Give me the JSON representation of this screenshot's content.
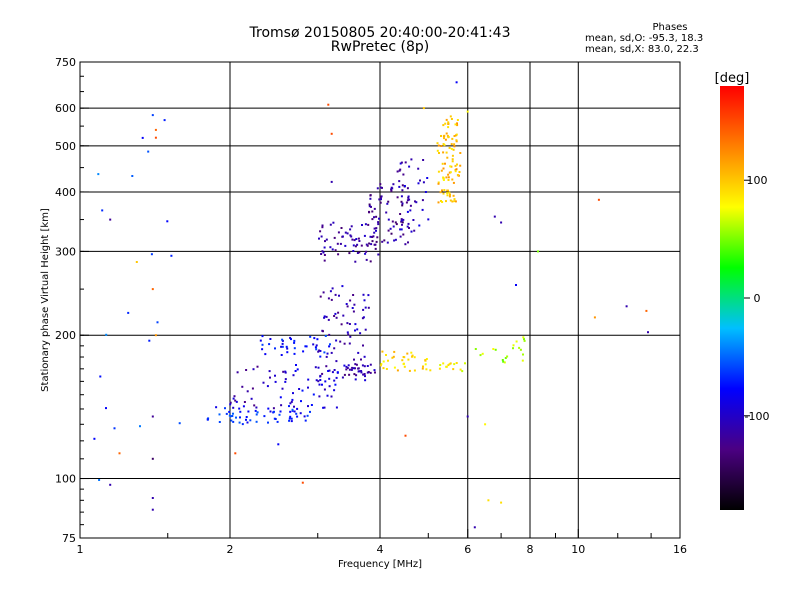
{
  "header": {
    "title_line1": "Tromsø 20150805 20:40:00-20:41:43",
    "title_line2": "RwPretec (8p)",
    "stats_title": "Phases",
    "stats_line1": "mean, sd,O: -95.3, 18.3",
    "stats_line2": "mean, sd,X:  83.0, 22.3"
  },
  "colorbar": {
    "unit_label": "[deg]",
    "tick_labels": [
      {
        "value": 100,
        "label": "100"
      },
      {
        "value": 0,
        "label": "0"
      },
      {
        "value": -100,
        "label": "-100"
      }
    ],
    "range": [
      -180,
      180
    ],
    "colors": [
      "#000000",
      "#4b0082",
      "#0000ff",
      "#00bfff",
      "#00ff00",
      "#ffff00",
      "#ff8000",
      "#ff0000"
    ]
  },
  "chart_data": {
    "type": "scatter",
    "title": "Tromsø 20150805 20:40:00-20:41:43",
    "subtitle": "RwPretec (8p)",
    "xlabel": "Frequency [MHz]",
    "ylabel": "Stationary phase Virtual Height [km]",
    "x_scale": "log",
    "y_scale": "log",
    "xlim": [
      1,
      16
    ],
    "ylim": [
      75,
      750
    ],
    "x_ticks": [
      {
        "value": 1,
        "label": "1"
      },
      {
        "value": 2,
        "label": "2"
      },
      {
        "value": 4,
        "label": "4"
      },
      {
        "value": 6,
        "label": "6"
      },
      {
        "value": 8,
        "label": "8"
      },
      {
        "value": 10,
        "label": "10"
      },
      {
        "value": 16,
        "label": "16"
      }
    ],
    "y_ticks": [
      {
        "value": 75,
        "label": "75"
      },
      {
        "value": 100,
        "label": "100"
      },
      {
        "value": 200,
        "label": "200"
      },
      {
        "value": 300,
        "label": "300"
      },
      {
        "value": 400,
        "label": "400"
      },
      {
        "value": 500,
        "label": "500"
      },
      {
        "value": 600,
        "label": "600"
      },
      {
        "value": 750,
        "label": "750"
      }
    ],
    "grid_x": [
      2,
      4,
      6,
      8,
      10
    ],
    "grid_y": [
      100,
      200,
      300,
      400,
      500,
      600
    ],
    "grid": true,
    "color_scale": "phase [deg]",
    "clusters": [
      {
        "x_range": [
          1.8,
          2.9
        ],
        "y_range": [
          130,
          142
        ],
        "phase": -70,
        "count": 60
      },
      {
        "x_range": [
          2.5,
          3.3
        ],
        "y_range": [
          140,
          175
        ],
        "phase": -90,
        "count": 45
      },
      {
        "x_range": [
          2.0,
          2.6
        ],
        "y_range": [
          140,
          175
        ],
        "phase": -110,
        "count": 30
      },
      {
        "x_range": [
          2.3,
          3.2
        ],
        "y_range": [
          180,
          200
        ],
        "phase": -75,
        "count": 40
      },
      {
        "x_range": [
          3.0,
          3.8
        ],
        "y_range": [
          160,
          255
        ],
        "phase": -110,
        "count": 80
      },
      {
        "x_range": [
          3.4,
          4.0
        ],
        "y_range": [
          165,
          175
        ],
        "phase": -115,
        "count": 25
      },
      {
        "x_range": [
          3.0,
          4.0
        ],
        "y_range": [
          285,
          345
        ],
        "phase": -115,
        "count": 70
      },
      {
        "x_range": [
          3.8,
          4.6
        ],
        "y_range": [
          310,
          420
        ],
        "phase": -120,
        "count": 70
      },
      {
        "x_range": [
          4.3,
          5.0
        ],
        "y_range": [
          330,
          470
        ],
        "phase": -105,
        "count": 40
      },
      {
        "x_range": [
          5.3,
          5.8
        ],
        "y_range": [
          380,
          580
        ],
        "phase": 105,
        "count": 70
      },
      {
        "x_range": [
          5.2,
          5.6
        ],
        "y_range": [
          380,
          530
        ],
        "phase": 100,
        "count": 30
      },
      {
        "x_range": [
          4.0,
          5.0
        ],
        "y_range": [
          168,
          185
        ],
        "phase": 95,
        "count": 35
      },
      {
        "x_range": [
          5.0,
          6.0
        ],
        "y_range": [
          168,
          175
        ],
        "phase": 80,
        "count": 15
      },
      {
        "x_range": [
          6.2,
          8.0
        ],
        "y_range": [
          175,
          200
        ],
        "phase": 60,
        "count": 20
      },
      {
        "x_range": [
          1.05,
          1.6
        ],
        "y_range": [
          85,
          580
        ],
        "phase": -60,
        "count": 20
      }
    ],
    "scattered_points": [
      {
        "x": 1.15,
        "y": 350,
        "phase": -120
      },
      {
        "x": 1.4,
        "y": 580,
        "phase": -60
      },
      {
        "x": 1.42,
        "y": 540,
        "phase": 140
      },
      {
        "x": 1.42,
        "y": 520,
        "phase": 150
      },
      {
        "x": 1.4,
        "y": 250,
        "phase": 140
      },
      {
        "x": 1.42,
        "y": 200,
        "phase": 120
      },
      {
        "x": 1.4,
        "y": 135,
        "phase": -120
      },
      {
        "x": 1.4,
        "y": 110,
        "phase": -140
      },
      {
        "x": 1.15,
        "y": 97,
        "phase": -110
      },
      {
        "x": 1.4,
        "y": 91,
        "phase": -110
      },
      {
        "x": 1.4,
        "y": 86,
        "phase": -110
      },
      {
        "x": 1.2,
        "y": 113,
        "phase": 140
      },
      {
        "x": 1.3,
        "y": 285,
        "phase": 100
      },
      {
        "x": 3.15,
        "y": 610,
        "phase": 150
      },
      {
        "x": 3.2,
        "y": 530,
        "phase": 150
      },
      {
        "x": 3.2,
        "y": 420,
        "phase": -110
      },
      {
        "x": 2.8,
        "y": 98,
        "phase": 150
      },
      {
        "x": 2.05,
        "y": 113,
        "phase": 150
      },
      {
        "x": 5.7,
        "y": 680,
        "phase": -80
      },
      {
        "x": 4.9,
        "y": 600,
        "phase": 100
      },
      {
        "x": 6.0,
        "y": 590,
        "phase": 80
      },
      {
        "x": 6.8,
        "y": 355,
        "phase": -110
      },
      {
        "x": 7.0,
        "y": 345,
        "phase": -110
      },
      {
        "x": 7.5,
        "y": 255,
        "phase": -80
      },
      {
        "x": 8.3,
        "y": 300,
        "phase": 50
      },
      {
        "x": 11.0,
        "y": 385,
        "phase": 150
      },
      {
        "x": 10.8,
        "y": 218,
        "phase": 120
      },
      {
        "x": 12.5,
        "y": 230,
        "phase": -110
      },
      {
        "x": 13.7,
        "y": 225,
        "phase": 140
      },
      {
        "x": 13.8,
        "y": 203,
        "phase": -110
      },
      {
        "x": 6.2,
        "y": 79,
        "phase": -110
      },
      {
        "x": 6.6,
        "y": 90,
        "phase": 90
      },
      {
        "x": 7.0,
        "y": 89,
        "phase": 90
      },
      {
        "x": 6.0,
        "y": 135,
        "phase": -110
      },
      {
        "x": 6.5,
        "y": 130,
        "phase": 80
      },
      {
        "x": 4.5,
        "y": 123,
        "phase": 150
      },
      {
        "x": 2.5,
        "y": 118,
        "phase": -80
      }
    ]
  }
}
